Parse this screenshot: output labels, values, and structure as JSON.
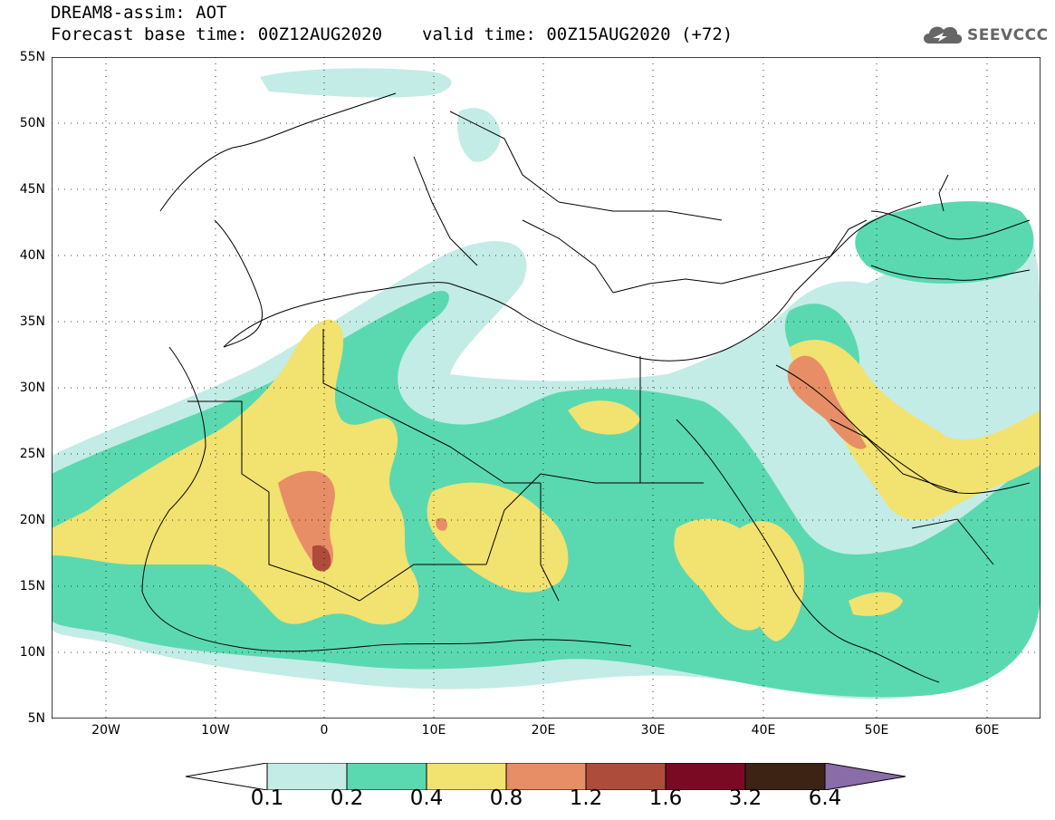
{
  "header": {
    "model_line": "DREAM8-assim: AOT",
    "base_time": "Forecast base time: 00Z12AUG2020",
    "valid_time": "valid time: 00Z15AUG2020 (+72)"
  },
  "logo": {
    "text": "SEEVCCC",
    "icon": "cloud-icon"
  },
  "axes": {
    "lat_labels": [
      "55N",
      "50N",
      "45N",
      "40N",
      "35N",
      "30N",
      "25N",
      "20N",
      "15N",
      "10N",
      "5N"
    ],
    "lon_labels": [
      "20W",
      "10W",
      "0",
      "10E",
      "20E",
      "30E",
      "40E",
      "50E",
      "60E"
    ],
    "lat_range": [
      5,
      55
    ],
    "lon_range": [
      -25,
      65
    ],
    "grid": "dotted"
  },
  "colorbar": {
    "levels": [
      "0.1",
      "0.2",
      "0.4",
      "0.8",
      "1.2",
      "1.6",
      "3.2",
      "6.4"
    ],
    "colors": [
      "#ffffff",
      "#c3ece6",
      "#5ad9b0",
      "#f2e270",
      "#e88e66",
      "#ae4c3c",
      "#7a0a24",
      "#3d2314",
      "#8a6ca8"
    ]
  },
  "map_colors": {
    "land_outline": "#000000",
    "aot_01_02": "#c3ece6",
    "aot_02_04": "#5ad9b0",
    "aot_04_08": "#f2e270",
    "aot_08_12": "#e88e66",
    "aot_12_16": "#ae4c3c"
  }
}
